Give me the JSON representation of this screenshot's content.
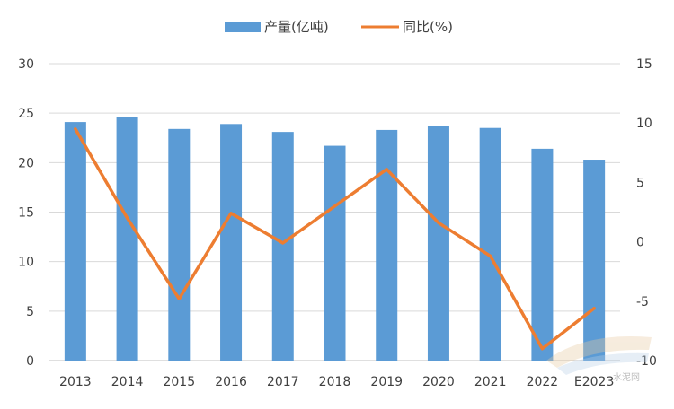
{
  "chart_data": {
    "type": "bar+line",
    "categories": [
      "2013",
      "2014",
      "2015",
      "2016",
      "2017",
      "2018",
      "2019",
      "2020",
      "2021",
      "2022",
      "E2023"
    ],
    "series": [
      {
        "name": "产量(亿吨)",
        "type": "bar",
        "axis": "left",
        "color": "#5B9BD5",
        "values": [
          24.1,
          24.6,
          23.4,
          23.9,
          23.1,
          21.7,
          23.3,
          23.7,
          23.5,
          21.4,
          20.3
        ]
      },
      {
        "name": "同比(%)",
        "type": "line",
        "axis": "right",
        "color": "#ED7D31",
        "values": [
          9.5,
          2.0,
          -4.8,
          2.4,
          -0.1,
          3.0,
          6.1,
          1.6,
          -1.2,
          -9.0,
          -5.6
        ]
      }
    ],
    "y_left": {
      "min": 0,
      "max": 30,
      "ticks": [
        0,
        5,
        10,
        15,
        20,
        25,
        30
      ]
    },
    "y_right": {
      "min": -10,
      "max": 15,
      "ticks": [
        -10,
        -5,
        0,
        5,
        10,
        15
      ]
    },
    "grid": true,
    "legend": "top-center",
    "watermark": "水泥网"
  }
}
